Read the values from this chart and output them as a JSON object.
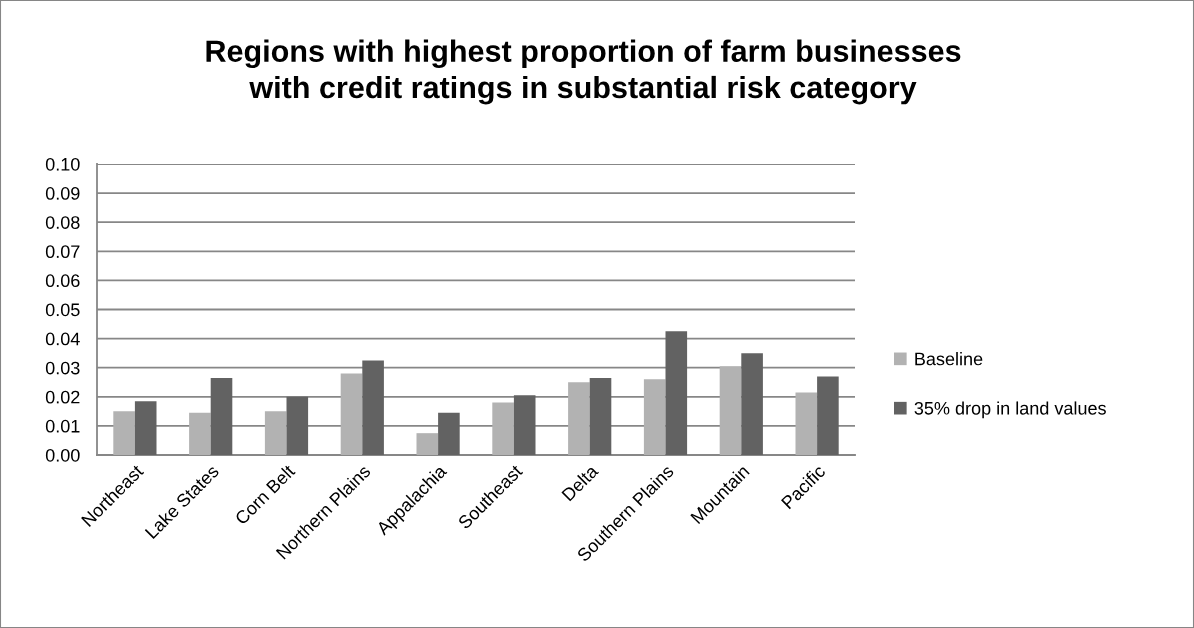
{
  "chart_data": {
    "type": "bar",
    "title": "Regions with highest proportion of farm businesses\nwith credit ratings in substantial risk category",
    "categories": [
      "Northeast",
      "Lake States",
      "Corn Belt",
      "Northern Plains",
      "Appalachia",
      "Southeast",
      "Delta",
      "Southern Plains",
      "Mountain",
      "Pacific"
    ],
    "series": [
      {
        "name": "Baseline",
        "color": "#b2b2b2",
        "values": [
          0.015,
          0.0145,
          0.015,
          0.028,
          0.0075,
          0.018,
          0.025,
          0.026,
          0.0305,
          0.0215
        ]
      },
      {
        "name": "35% drop in land values",
        "color": "#626262",
        "values": [
          0.0185,
          0.0265,
          0.02,
          0.0325,
          0.0145,
          0.0205,
          0.0265,
          0.0425,
          0.035,
          0.027
        ]
      }
    ],
    "ylim": [
      0,
      0.1
    ],
    "yticks": [
      {
        "value": 0,
        "label": "0.00"
      },
      {
        "value": 0.01,
        "label": "0.01"
      },
      {
        "value": 0.02,
        "label": "0.02"
      },
      {
        "value": 0.03,
        "label": "0.03"
      },
      {
        "value": 0.04,
        "label": "0.04"
      },
      {
        "value": 0.05,
        "label": "0.05"
      },
      {
        "value": 0.06,
        "label": "0.06"
      },
      {
        "value": 0.07,
        "label": "0.07"
      },
      {
        "value": 0.08,
        "label": "0.08"
      },
      {
        "value": 0.09,
        "label": "0.09"
      },
      {
        "value": 0.1,
        "label": "0.10"
      }
    ],
    "grid": "y",
    "legend": "right"
  }
}
